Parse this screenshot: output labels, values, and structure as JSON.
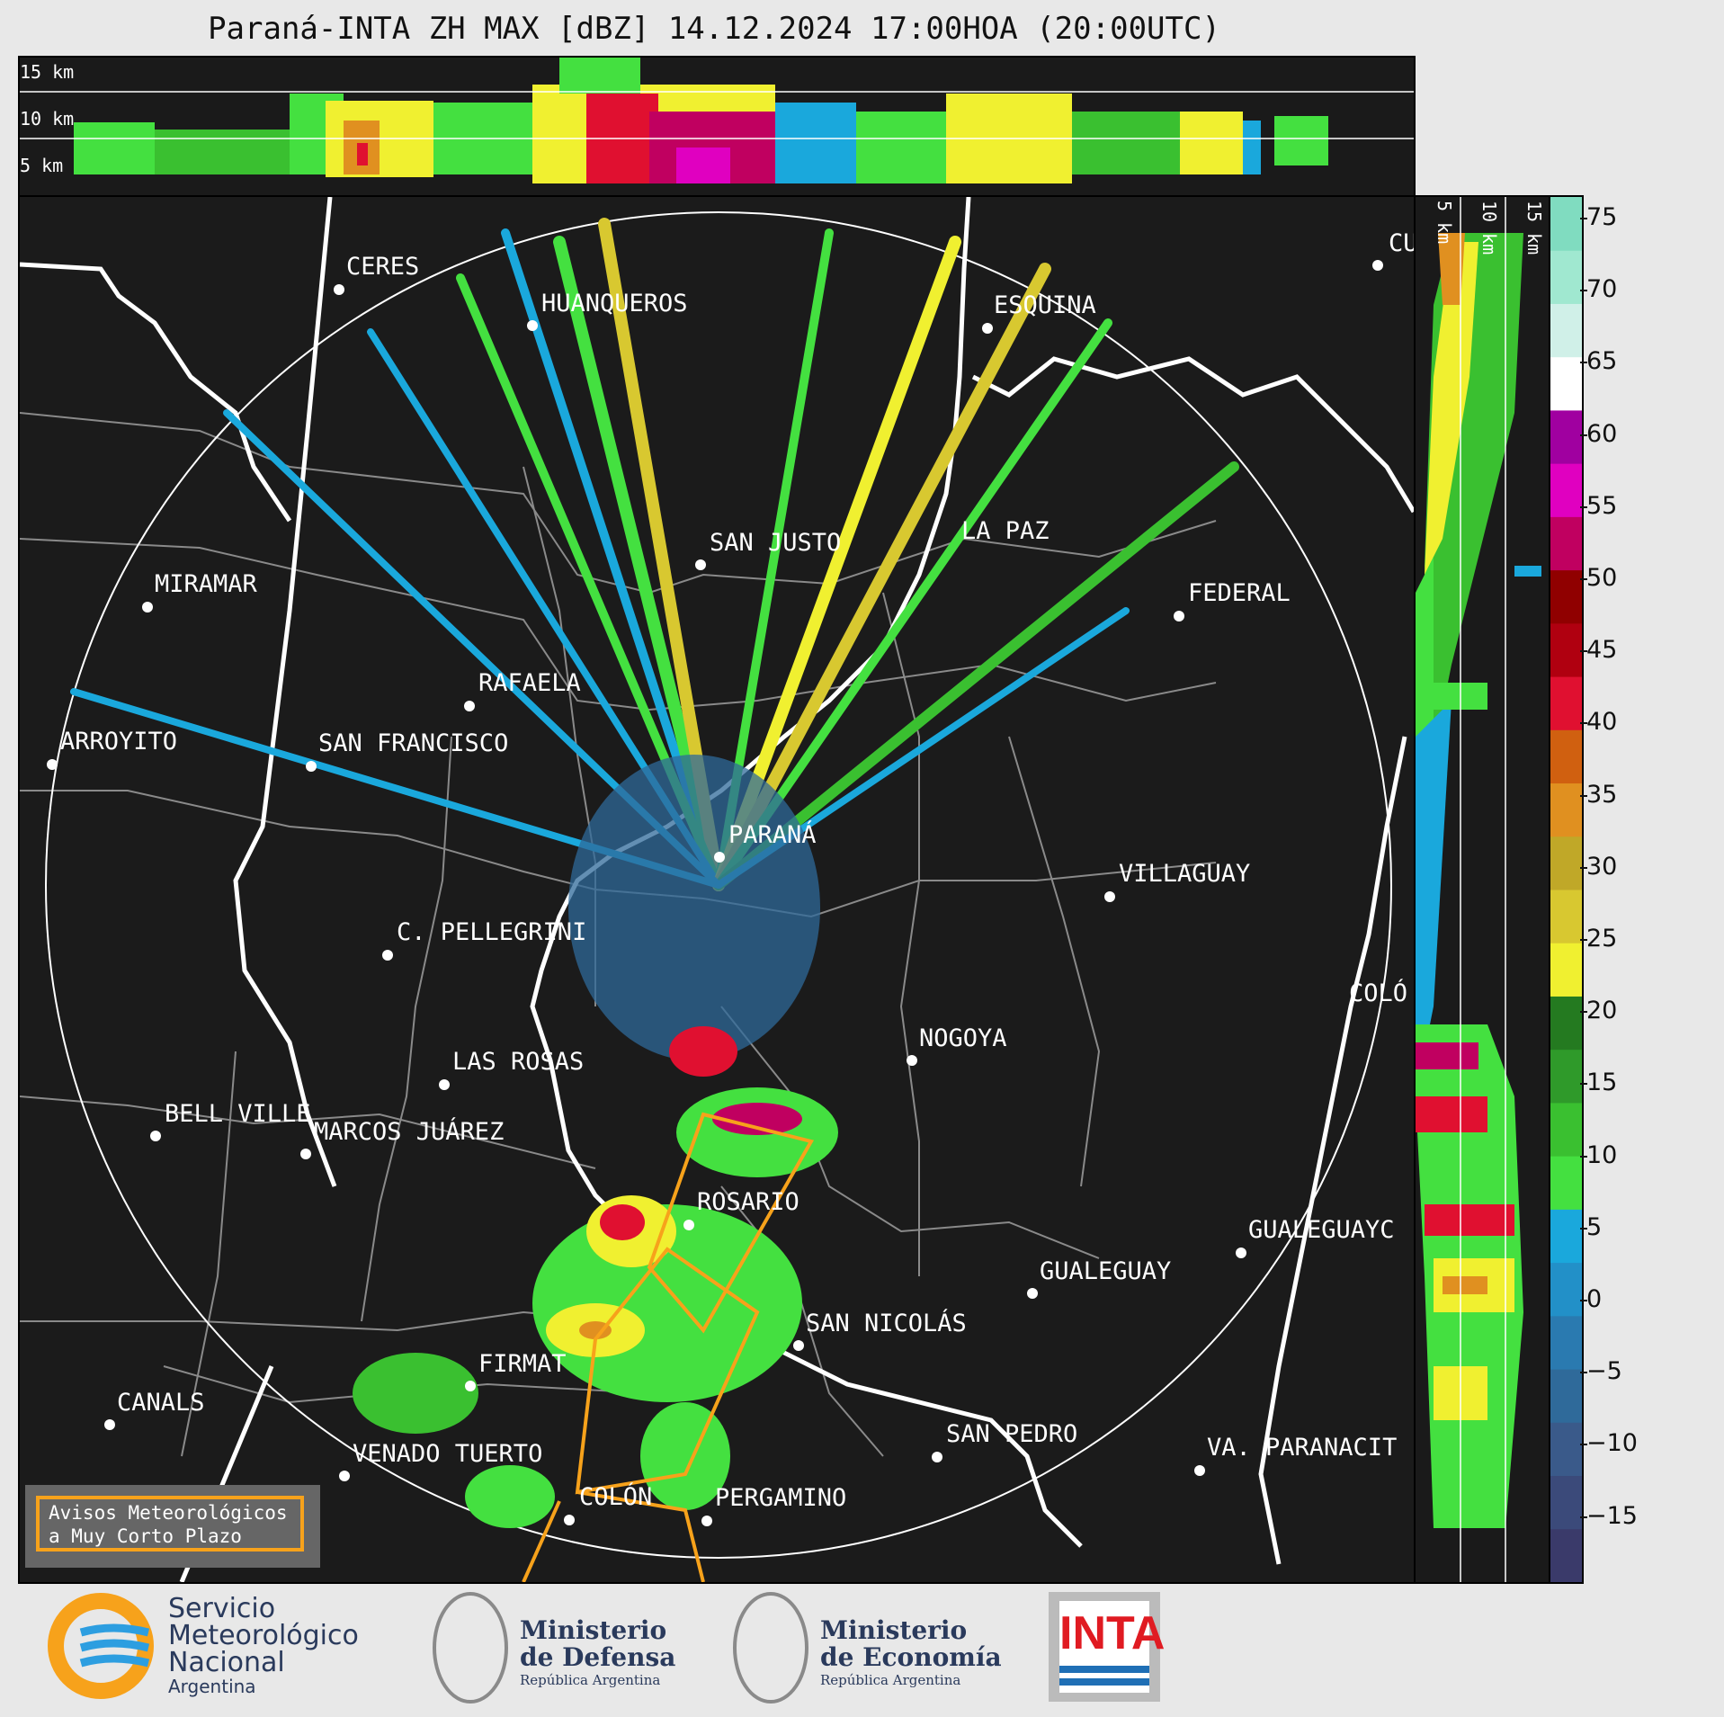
{
  "title": "Paraná-INTA ZH MAX [dBZ] 14.12.2024 17:00HOA (20:00UTC)",
  "top_section_labels": [
    "15 km",
    "10 km",
    "5 km"
  ],
  "right_section_labels": [
    "5 km",
    "10 km",
    "15 km"
  ],
  "colorbar": {
    "ticks": [
      "75",
      "70",
      "65",
      "60",
      "55",
      "50",
      "45",
      "40",
      "35",
      "30",
      "25",
      "20",
      "15",
      "10",
      "5",
      "0",
      "−5",
      "−10",
      "−15"
    ],
    "colors": [
      "#3a3a6a",
      "#3b4a7a",
      "#3a5a8a",
      "#2f6a9a",
      "#2a7ab0",
      "#2290c8",
      "#1aa8dc",
      "#44e040",
      "#3ac030",
      "#2f9a2a",
      "#247a20",
      "#f0f030",
      "#d8c830",
      "#c0a828",
      "#e09020",
      "#d06010",
      "#e01030",
      "#b00010",
      "#900000",
      "#c00060",
      "#e000c0",
      "#a000a0",
      "#ffffff",
      "#d0f0e8",
      "#a0e8d0",
      "#80dcc0"
    ]
  },
  "cities": [
    {
      "name": "CERES"
    },
    {
      "name": "HUANQUEROS"
    },
    {
      "name": "ESQUINA"
    },
    {
      "name": "CU"
    },
    {
      "name": "MIRAMAR"
    },
    {
      "name": "SAN JUSTO"
    },
    {
      "name": "LA PAZ"
    },
    {
      "name": "FEDERAL"
    },
    {
      "name": "RAFAELA"
    },
    {
      "name": "ARROYITO"
    },
    {
      "name": "SAN FRANCISCO"
    },
    {
      "name": "PARANÁ"
    },
    {
      "name": "VILLAGUAY"
    },
    {
      "name": "C. PELLEGRINI"
    },
    {
      "name": "COLÓ"
    },
    {
      "name": "NOGOYA"
    },
    {
      "name": "LAS ROSAS"
    },
    {
      "name": "BELL VILLE"
    },
    {
      "name": "MARCOS JUÁREZ"
    },
    {
      "name": "ROSARIO"
    },
    {
      "name": "GUALEGUAYC"
    },
    {
      "name": "GUALEGUAY"
    },
    {
      "name": "SAN NICOLÁS"
    },
    {
      "name": "FIRMAT"
    },
    {
      "name": "CANALS"
    },
    {
      "name": "SAN PEDRO"
    },
    {
      "name": "VENADO TUERTO"
    },
    {
      "name": "VA. PARANACIT"
    },
    {
      "name": "COLÓN"
    },
    {
      "name": "PERGAMINO"
    }
  ],
  "aviso": {
    "line1": "Avisos Meteorológicos",
    "line2": "a Muy Corto Plazo"
  },
  "logos": {
    "smn": {
      "line1": "Servicio",
      "line2": "Meteorológico",
      "line3": "Nacional",
      "line4": "Argentina"
    },
    "defensa": {
      "line1": "Ministerio",
      "line2": "de Defensa",
      "line3": "República Argentina"
    },
    "economia": {
      "line1": "Ministerio",
      "line2": "de Economía",
      "line3": "República Argentina"
    },
    "inta": {
      "label": "INTA"
    }
  }
}
